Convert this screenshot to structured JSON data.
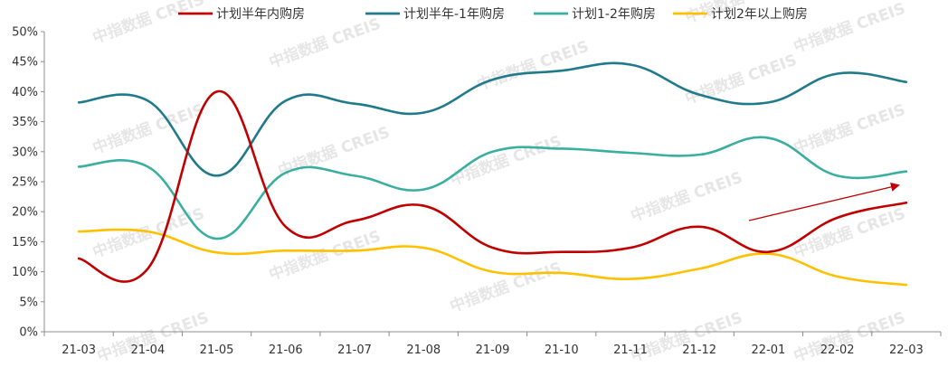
{
  "chart_data": {
    "type": "line",
    "categories": [
      "21-03",
      "21-04",
      "21-05",
      "21-06",
      "21-07",
      "21-08",
      "21-09",
      "21-10",
      "21-11",
      "21-12",
      "22-01",
      "22-02",
      "22-03"
    ],
    "ylim": [
      0,
      50
    ],
    "yticks": [
      0,
      5,
      10,
      15,
      20,
      25,
      30,
      35,
      40,
      45,
      50
    ],
    "ytick_labels": [
      "0%",
      "5%",
      "10%",
      "15%",
      "20%",
      "25%",
      "30%",
      "35%",
      "40%",
      "45%",
      "50%"
    ],
    "grid": false,
    "legend_position": "top",
    "series": [
      {
        "name": "计划半年内购房",
        "color": "#C00000",
        "values": [
          12.2,
          10.5,
          40.0,
          17.5,
          18.5,
          21.0,
          14.0,
          13.3,
          14.0,
          17.5,
          13.3,
          19.0,
          21.5
        ]
      },
      {
        "name": "计划半年-1年购房",
        "color": "#1F7A8C",
        "values": [
          38.2,
          38.5,
          26.0,
          38.5,
          38.0,
          36.5,
          42.0,
          43.5,
          44.5,
          39.5,
          38.2,
          43.0,
          41.6
        ]
      },
      {
        "name": "计划1-2年购房",
        "color": "#3AAF9F",
        "values": [
          27.5,
          27.5,
          15.5,
          26.5,
          26.0,
          23.7,
          30.0,
          30.5,
          29.8,
          29.5,
          32.3,
          26.0,
          26.7
        ]
      },
      {
        "name": "计划2年以上购房",
        "color": "#FFC000",
        "values": [
          16.7,
          16.7,
          13.2,
          13.5,
          13.5,
          14.0,
          10.0,
          9.8,
          8.8,
          10.5,
          13.0,
          9.2,
          7.8
        ]
      }
    ],
    "annotation": {
      "type": "trend-arrow",
      "color": "#C00000"
    }
  },
  "watermark": {
    "text": "中指数据 CREIS"
  }
}
